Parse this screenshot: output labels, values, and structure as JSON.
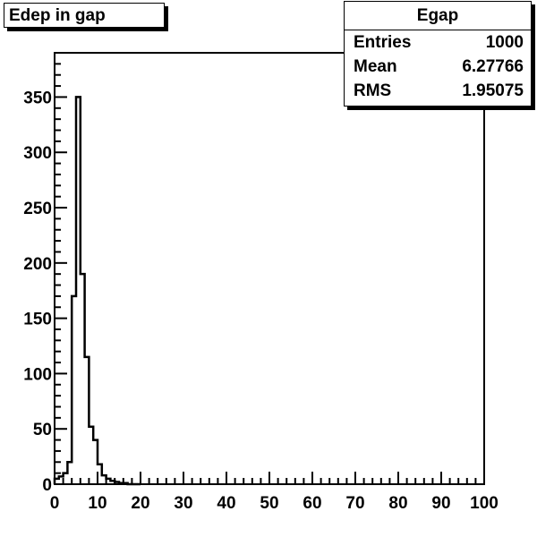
{
  "title": "Edep in gap",
  "stats": {
    "name": "Egap",
    "rows": [
      {
        "label": "Entries",
        "value": "1000"
      },
      {
        "label": "Mean",
        "value": "6.27766"
      },
      {
        "label": "RMS",
        "value": "1.95075"
      }
    ]
  },
  "chart_data": {
    "type": "bar",
    "style": "step-histogram",
    "title": "Edep in gap",
    "xlabel": "",
    "ylabel": "",
    "xlim": [
      0,
      100
    ],
    "ylim": [
      0,
      390
    ],
    "bin_width": 1,
    "bin_edges_start": 0,
    "values": [
      5,
      7,
      10,
      20,
      170,
      350,
      190,
      115,
      52,
      40,
      18,
      8,
      5,
      3,
      2,
      1,
      1,
      0,
      0,
      0
    ],
    "x_ticks": [
      0,
      10,
      20,
      30,
      40,
      50,
      60,
      70,
      80,
      90,
      100
    ],
    "y_ticks": [
      0,
      50,
      100,
      150,
      200,
      250,
      300,
      350
    ],
    "grid": false,
    "legend": "top-right statistics box"
  }
}
